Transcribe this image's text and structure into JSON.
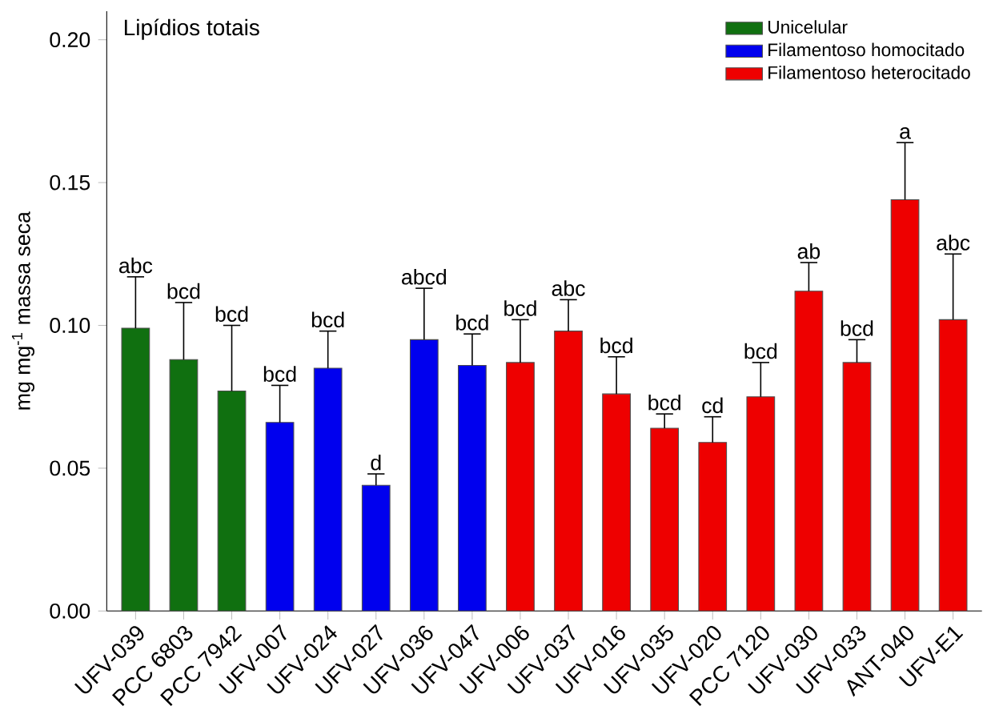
{
  "chart_data": {
    "type": "bar",
    "title": "Lipídios totais",
    "ylabel": "mg mg$^{-1}$ massa seca",
    "categories": [
      "UFV-039",
      "PCC 6803",
      "PCC 7942",
      "UFV-007",
      "UFV-024",
      "UFV-027",
      "UFV-036",
      "UFV-047",
      "UFV-006",
      "UFV-037",
      "UFV-016",
      "UFV-035",
      "UFV-020",
      "PCC 7120",
      "UFV-030",
      "UFV-033",
      "ANT-040",
      "UFV-E1"
    ],
    "series": [
      {
        "name": "Unicelular",
        "color": "#107010",
        "values": [
          0.099,
          0.088,
          0.077,
          null,
          null,
          null,
          null,
          null,
          null,
          null,
          null,
          null,
          null,
          null,
          null,
          null,
          null,
          null
        ],
        "errors": [
          [
            0.099,
            0.117
          ],
          [
            0.088,
            0.108
          ],
          [
            0.077,
            0.1
          ],
          null,
          null,
          null,
          null,
          null,
          null,
          null,
          null,
          null,
          null,
          null,
          null,
          null,
          null,
          null
        ]
      },
      {
        "name": "Filamentoso homocitado",
        "color": "#0000ee",
        "values": [
          null,
          null,
          null,
          0.066,
          0.085,
          0.044,
          0.095,
          0.086,
          null,
          null,
          null,
          null,
          null,
          null,
          null,
          null,
          null,
          null
        ],
        "errors": [
          null,
          null,
          null,
          [
            0.066,
            0.079
          ],
          [
            0.085,
            0.098
          ],
          [
            0.044,
            0.048
          ],
          [
            0.095,
            0.113
          ],
          [
            0.086,
            0.097
          ],
          null,
          null,
          null,
          null,
          null,
          null,
          null,
          null,
          null,
          null
        ]
      },
      {
        "name": "Filamentoso heterocitado",
        "color": "#ee0000",
        "values": [
          null,
          null,
          null,
          null,
          null,
          null,
          null,
          null,
          0.087,
          0.098,
          0.076,
          0.064,
          0.059,
          0.075,
          0.112,
          0.087,
          0.144,
          0.102
        ],
        "errors": [
          null,
          null,
          null,
          null,
          null,
          null,
          null,
          null,
          [
            0.087,
            0.102
          ],
          [
            0.098,
            0.109
          ],
          [
            0.076,
            0.089
          ],
          [
            0.064,
            0.069
          ],
          [
            0.059,
            0.068
          ],
          [
            0.075,
            0.087
          ],
          [
            0.112,
            0.122
          ],
          [
            0.087,
            0.095
          ],
          [
            0.144,
            0.164
          ],
          [
            0.102,
            0.125
          ]
        ]
      }
    ],
    "ylim": [
      0,
      0.21
    ],
    "yticks": [
      {
        "value": 0,
        "label": "0.00"
      },
      {
        "value": 0.05,
        "label": "0.05"
      },
      {
        "value": 0.1,
        "label": "0.10"
      },
      {
        "value": 0.15,
        "label": "0.15"
      },
      {
        "value": 0.2,
        "label": "0.20"
      }
    ],
    "legend": "top right",
    "annotations": [
      "abc",
      "bcd",
      "bcd",
      "bcd",
      "bcd",
      "d",
      "abcd",
      "bcd",
      "bcd",
      "abc",
      "bcd",
      "bcd",
      "cd",
      "bcd",
      "ab",
      "bcd",
      "a",
      "abc"
    ]
  }
}
